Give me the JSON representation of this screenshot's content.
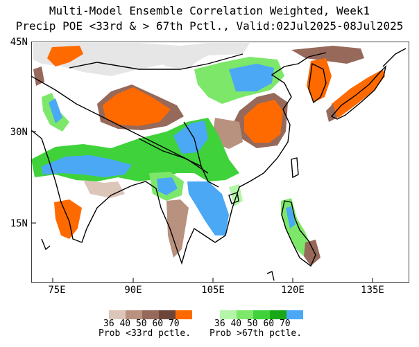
{
  "title": {
    "line1": "Multi-Model Ensemble Correlation Weighted, Week1",
    "line2": "Precip POE <33rd & > 67th Pctl., Valid:02Jul2025-08Jul2025"
  },
  "axes": {
    "lat_labels": [
      "45N",
      "30N",
      "15N"
    ],
    "lon_labels": [
      "75E",
      "90E",
      "105E",
      "120E",
      "135E"
    ]
  },
  "legend": {
    "below": {
      "caption": "Prob <33rd pctle.",
      "values": [
        "36",
        "40",
        "50",
        "60",
        "70"
      ],
      "colors": [
        "#dcc6b9",
        "#b9917f",
        "#96695a",
        "#6b4638",
        "#ff6a00"
      ]
    },
    "above": {
      "caption": "Prob >67th pctle.",
      "values": [
        "36",
        "40",
        "50",
        "60",
        "70"
      ],
      "colors": [
        "#b4f5a8",
        "#7de76a",
        "#3fd23a",
        "#18a817",
        "#4aa8f5"
      ]
    }
  },
  "colors": {
    "no_data": "#e6e6e6",
    "coastline": "#000000"
  }
}
